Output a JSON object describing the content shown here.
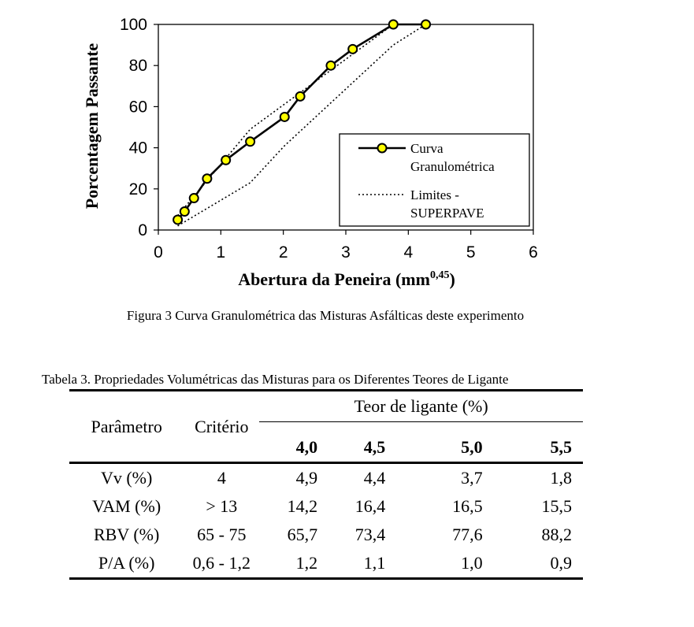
{
  "chart_data": {
    "type": "line",
    "xlabel": "Abertura da Peneira (mm",
    "xlabel_superscript": "0,45",
    "xlabel_suffix": ")",
    "ylabel": "Porcentagem Passante",
    "xlim": [
      0,
      6
    ],
    "ylim": [
      0,
      100
    ],
    "x_ticks": [
      "0",
      "1",
      "2",
      "3",
      "4",
      "5",
      "6"
    ],
    "y_ticks": [
      "0",
      "20",
      "40",
      "60",
      "80",
      "100"
    ],
    "grid": false,
    "legend_position": "bottom-right",
    "series": [
      {
        "name": "Curva Granulométrica",
        "style": "solid-line-with-yellow-markers",
        "x": [
          0.31,
          0.42,
          0.57,
          0.78,
          1.08,
          1.47,
          2.02,
          2.27,
          2.76,
          3.11,
          3.76,
          4.28
        ],
        "y": [
          5,
          9,
          15.5,
          25,
          34,
          43,
          55,
          65,
          80,
          88,
          100,
          100
        ]
      },
      {
        "name": "Limites - SUPERPAVE",
        "style": "dotted",
        "segments": [
          {
            "x": [
              0.31,
              1.47,
              2.02,
              3.76,
              4.28
            ],
            "y": [
              2,
              23,
              41,
              90,
              100
            ]
          },
          {
            "x": [
              0.31,
              1.47,
              3.76
            ],
            "y": [
              7,
              49,
              100
            ]
          }
        ]
      }
    ],
    "legend": {
      "line1": [
        "Curva",
        "Granulométrica"
      ],
      "line2": [
        "Limites -",
        "SUPERPAVE"
      ]
    },
    "colors": {
      "marker_fill": "#ffff00",
      "line": "#000000"
    }
  },
  "figure_caption": "Figura 3 Curva Granulométrica das Misturas Asfálticas deste experimento",
  "table_caption": "Tabela 3. Propriedades Volumétricas das Misturas para os Diferentes Teores de Ligante",
  "table": {
    "header_param": "Parâmetro",
    "header_criterio": "Critério",
    "header_teor": "Teor de ligante (%)",
    "teores": [
      "4,0",
      "4,5",
      "5,0",
      "5,5"
    ],
    "rows": [
      {
        "param": "Vv (%)",
        "criterio": "4",
        "values": [
          "4,9",
          "4,4",
          "3,7",
          "1,8"
        ]
      },
      {
        "param": "VAM (%)",
        "criterio": "> 13",
        "values": [
          "14,2",
          "16,4",
          "16,5",
          "15,5"
        ]
      },
      {
        "param": "RBV (%)",
        "criterio": "65 - 75",
        "values": [
          "65,7",
          "73,4",
          "77,6",
          "88,2"
        ]
      },
      {
        "param": "P/A (%)",
        "criterio": "0,6 - 1,2",
        "values": [
          "1,2",
          "1,1",
          "1,0",
          "0,9"
        ]
      }
    ]
  }
}
